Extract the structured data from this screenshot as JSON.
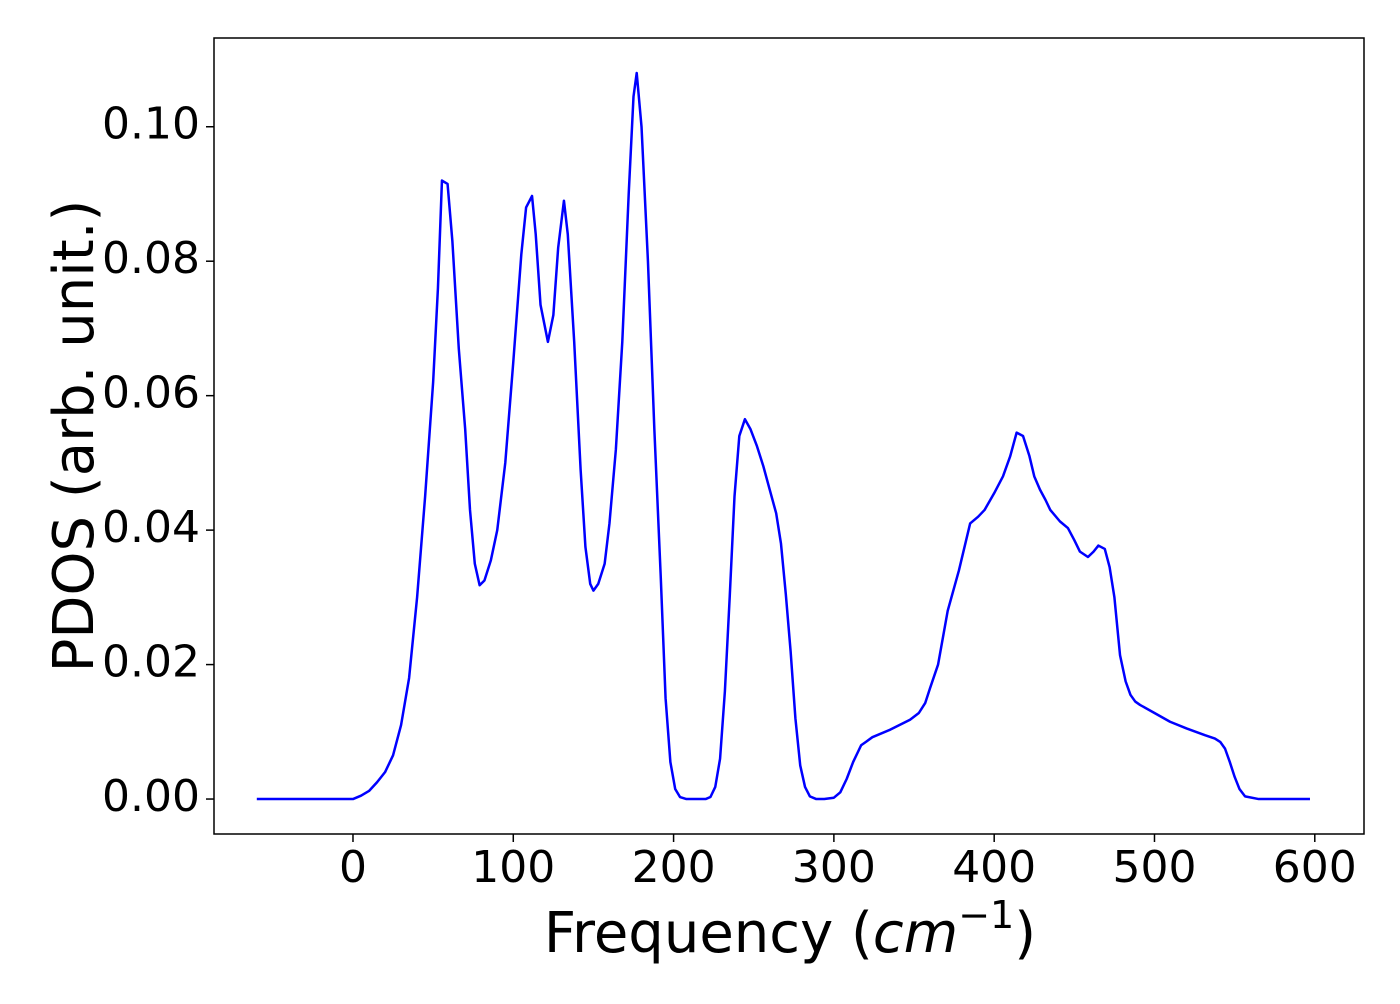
{
  "chart_data": {
    "type": "line",
    "ylabel": "PDOS (arb. unit.)",
    "xlabel_parts": [
      "Frequency (",
      "cm",
      "−1",
      ")"
    ],
    "x": [
      -60,
      -40,
      -20,
      0,
      5,
      10,
      15,
      20,
      25,
      30,
      35,
      40,
      45,
      50,
      53,
      55.5,
      59,
      62,
      66,
      70,
      73,
      76,
      79,
      82,
      86,
      90,
      95,
      100,
      105,
      108,
      111.7,
      114,
      117,
      121.6,
      125,
      128,
      131.6,
      134,
      138,
      142,
      145,
      148,
      150,
      153,
      157,
      160,
      164,
      168,
      172,
      175,
      177,
      180,
      184,
      188,
      192,
      195,
      198,
      201,
      204,
      208,
      214,
      220,
      223,
      226,
      229,
      232,
      235,
      238,
      241,
      244.5,
      248,
      252,
      256,
      260,
      264,
      267,
      270,
      273,
      276,
      279,
      282,
      285,
      289,
      294,
      300,
      304,
      308,
      312,
      317,
      320,
      324,
      335,
      347.5,
      353,
      357,
      360,
      365,
      371,
      378,
      385,
      390,
      394,
      400,
      405.5,
      410,
      414,
      418,
      422,
      425,
      428.6,
      432,
      435,
      441,
      446,
      450,
      453.5,
      458.5,
      462,
      465,
      469,
      472,
      475,
      478.5,
      482,
      485,
      488,
      491,
      500,
      509.7,
      520,
      531.5,
      537.7,
      541,
      544,
      547,
      550,
      553,
      556.5,
      565,
      580,
      597
    ],
    "series": [
      {
        "color": "#0000ff",
        "values": [
          0,
          0,
          0,
          0,
          0.0005,
          0.0012,
          0.0025,
          0.004,
          0.0065,
          0.011,
          0.018,
          0.03,
          0.045,
          0.062,
          0.076,
          0.092,
          0.0915,
          0.083,
          0.067,
          0.055,
          0.043,
          0.035,
          0.0318,
          0.0325,
          0.0355,
          0.04,
          0.05,
          0.065,
          0.081,
          0.088,
          0.0897,
          0.084,
          0.0735,
          0.068,
          0.072,
          0.082,
          0.089,
          0.084,
          0.068,
          0.049,
          0.0375,
          0.032,
          0.031,
          0.032,
          0.035,
          0.041,
          0.052,
          0.068,
          0.09,
          0.1045,
          0.108,
          0.1,
          0.08,
          0.055,
          0.033,
          0.015,
          0.0055,
          0.0015,
          0.0003,
          0,
          0,
          0,
          0.0003,
          0.0018,
          0.006,
          0.016,
          0.03,
          0.045,
          0.054,
          0.0565,
          0.055,
          0.0525,
          0.0495,
          0.046,
          0.0425,
          0.038,
          0.0305,
          0.022,
          0.012,
          0.005,
          0.0018,
          0.0004,
          0,
          0,
          0.0002,
          0.001,
          0.003,
          0.0055,
          0.008,
          0.0085,
          0.0092,
          0.0103,
          0.0118,
          0.0128,
          0.0143,
          0.0165,
          0.02,
          0.028,
          0.034,
          0.041,
          0.042,
          0.043,
          0.0455,
          0.048,
          0.051,
          0.0545,
          0.054,
          0.051,
          0.048,
          0.046,
          0.0445,
          0.043,
          0.0413,
          0.0403,
          0.0385,
          0.0368,
          0.036,
          0.0368,
          0.0377,
          0.0372,
          0.0345,
          0.03,
          0.0214,
          0.0175,
          0.0155,
          0.0145,
          0.014,
          0.0128,
          0.0115,
          0.0105,
          0.0095,
          0.009,
          0.0085,
          0.0075,
          0.0055,
          0.0033,
          0.0015,
          0.0004,
          0,
          0,
          0
        ]
      }
    ],
    "xlim": [
      -86.7,
      630.7
    ],
    "ylim": [
      -0.0052,
      0.1132
    ],
    "xticks": [
      0,
      100,
      200,
      300,
      400,
      500,
      600
    ],
    "yticks": [
      {
        "value": 0,
        "label": "0.00"
      },
      {
        "value": 0.02,
        "label": "0.02"
      },
      {
        "value": 0.04,
        "label": "0.04"
      },
      {
        "value": 0.06,
        "label": "0.06"
      },
      {
        "value": 0.08,
        "label": "0.08"
      },
      {
        "value": 0.1,
        "label": "0.10"
      }
    ]
  }
}
